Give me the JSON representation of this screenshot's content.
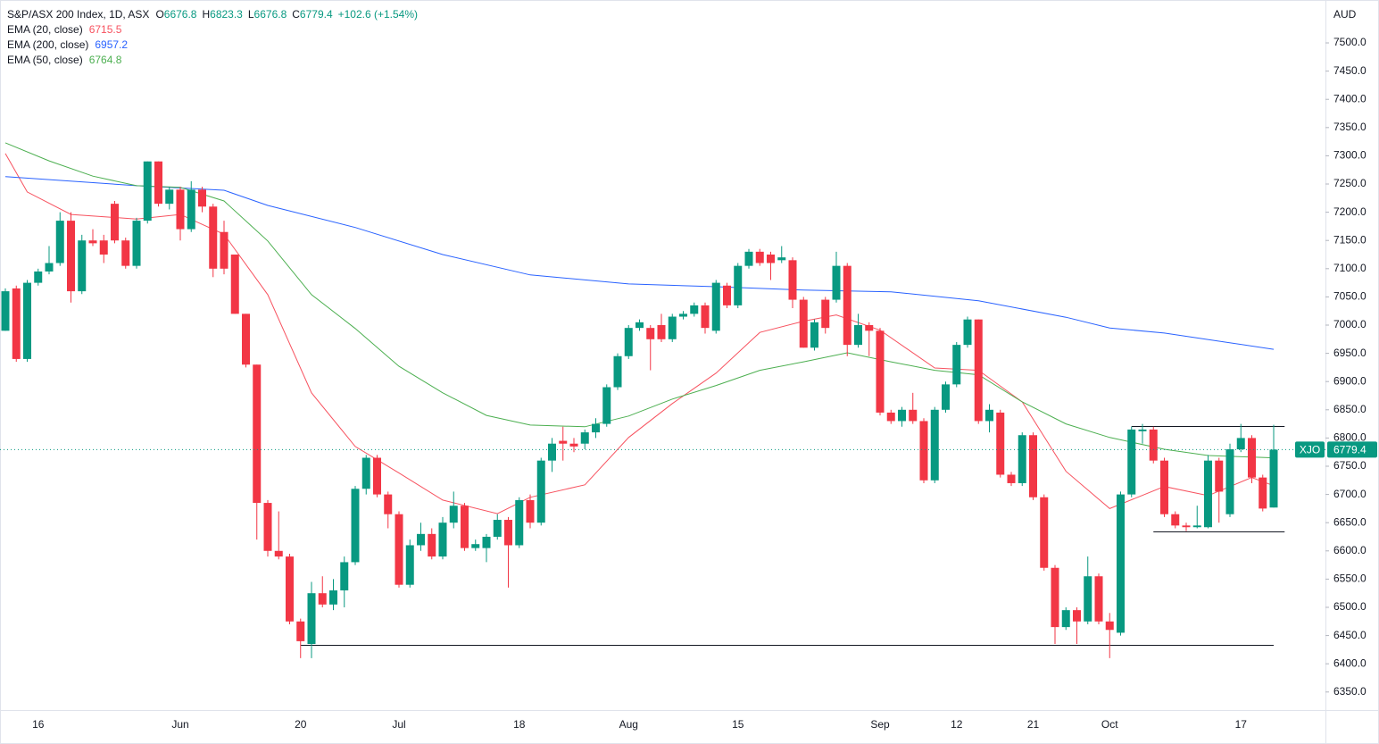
{
  "chart_data": {
    "type": "candlestick",
    "title": "S&P/ASX 200 Index, 1D, ASX",
    "ohlc_labels": [
      "O",
      "H",
      "L",
      "C"
    ],
    "change": "+102.6 (+1.54%)",
    "currency": "AUD",
    "symbol": "XJO",
    "up_color": "#089981",
    "down_color": "#f23645",
    "categories": [
      null,
      null,
      null,
      "16",
      null,
      null,
      null,
      null,
      null,
      null,
      null,
      null,
      null,
      null,
      null,
      null,
      "Jun",
      null,
      null,
      null,
      null,
      null,
      null,
      null,
      null,
      null,
      null,
      "20",
      null,
      null,
      null,
      null,
      null,
      null,
      null,
      null,
      "Jul",
      null,
      null,
      null,
      null,
      null,
      null,
      null,
      null,
      null,
      null,
      "18",
      null,
      null,
      null,
      null,
      null,
      null,
      null,
      null,
      null,
      "Aug",
      null,
      null,
      null,
      null,
      null,
      null,
      null,
      null,
      null,
      "15",
      null,
      null,
      null,
      null,
      null,
      null,
      null,
      null,
      null,
      null,
      null,
      null,
      "Sep",
      null,
      null,
      null,
      null,
      null,
      null,
      "12",
      null,
      null,
      null,
      null,
      null,
      null,
      "21",
      null,
      null,
      null,
      null,
      null,
      null,
      "Oct",
      null,
      null,
      null,
      null,
      null,
      null,
      null,
      null,
      null,
      null,
      null,
      "17",
      null,
      null,
      null
    ],
    "open": [
      6990,
      7065,
      6940,
      7075,
      7095,
      7110,
      7185,
      7060,
      7150,
      7150,
      7215,
      7150,
      7105,
      7185,
      7290,
      7215,
      7240,
      7170,
      7240,
      7210,
      7165,
      7125,
      7020,
      6930,
      6685,
      6600,
      6590,
      6475,
      6435,
      6525,
      6505,
      6530,
      6580,
      6710,
      6765,
      6700,
      6665,
      6540,
      6610,
      6630,
      6590,
      6650,
      6680,
      6605,
      6605,
      6625,
      6655,
      6610,
      6690,
      6650,
      6760,
      6795,
      6790,
      6790,
      6810,
      6825,
      6890,
      6945,
      6995,
      6995,
      7000,
      6975,
      7015,
      7020,
      7035,
      6990,
      7070,
      7035,
      7105,
      7130,
      7125,
      7115,
      7115,
      7045,
      6960,
      7045,
      7045,
      7105,
      6965,
      7000,
      6990,
      6845,
      6830,
      6850,
      6830,
      6725,
      6850,
      6895,
      6965,
      7010,
      6830,
      6845,
      6735,
      6720,
      6805,
      6695,
      6570,
      6465,
      6495,
      6475,
      6555,
      6475,
      6455,
      6700,
      6812,
      6815,
      6760,
      6665,
      6645,
      6642,
      6642,
      6760,
      6665,
      6780,
      6800,
      6730,
      6676.8
    ],
    "high": [
      7065,
      7070,
      7080,
      7100,
      7140,
      7200,
      7200,
      7160,
      7170,
      7160,
      7220,
      7155,
      7190,
      7290,
      7290,
      7245,
      7245,
      7255,
      7245,
      7215,
      7185,
      7125,
      7020,
      6930,
      6690,
      6670,
      6595,
      6480,
      6545,
      6555,
      6550,
      6590,
      6715,
      6770,
      6770,
      6705,
      6670,
      6620,
      6650,
      6640,
      6660,
      6705,
      6685,
      6620,
      6630,
      6665,
      6660,
      6695,
      6700,
      6765,
      6800,
      6820,
      6800,
      6815,
      6835,
      6895,
      6950,
      7000,
      7010,
      7000,
      7020,
      7020,
      7025,
      7040,
      7040,
      7080,
      7075,
      7110,
      7135,
      7135,
      7130,
      7140,
      7120,
      7050,
      7010,
      7050,
      7130,
      7110,
      7020,
      7005,
      6995,
      6850,
      6855,
      6880,
      6835,
      6855,
      6900,
      6970,
      7015,
      7010,
      6860,
      6850,
      6740,
      6810,
      6810,
      6700,
      6575,
      6500,
      6500,
      6590,
      6560,
      6490,
      6705,
      6820,
      6825,
      6820,
      6765,
      6670,
      6650,
      6680,
      6770,
      6765,
      6790,
      6825,
      6805,
      6735,
      6823.3
    ],
    "low": [
      6990,
      6935,
      6935,
      7070,
      7090,
      7105,
      7040,
      7055,
      7140,
      7110,
      7145,
      7100,
      7100,
      7180,
      7210,
      7205,
      7150,
      7165,
      7200,
      7085,
      7090,
      7020,
      6925,
      6620,
      6590,
      6585,
      6470,
      6410,
      6410,
      6500,
      6495,
      6500,
      6575,
      6700,
      6695,
      6640,
      6535,
      6535,
      6600,
      6585,
      6585,
      6640,
      6600,
      6600,
      6580,
      6620,
      6535,
      6605,
      6640,
      6645,
      6740,
      6760,
      6775,
      6780,
      6800,
      6820,
      6885,
      6940,
      6990,
      6920,
      6970,
      6970,
      7010,
      7015,
      6985,
      6985,
      7030,
      7030,
      7100,
      7105,
      7080,
      7110,
      7030,
      6960,
      6955,
      6985,
      7040,
      6945,
      6960,
      6945,
      6840,
      6825,
      6820,
      6825,
      6720,
      6720,
      6845,
      6890,
      6960,
      6825,
      6810,
      6730,
      6715,
      6715,
      6690,
      6565,
      6435,
      6460,
      6435,
      6470,
      6470,
      6410,
      6450,
      6695,
      6790,
      6755,
      6660,
      6640,
      6635,
      6640,
      6640,
      6650,
      6660,
      6775,
      6720,
      6670,
      6676.8
    ],
    "close": [
      7060,
      6940,
      7075,
      7095,
      7110,
      7185,
      7060,
      7150,
      7145,
      7125,
      7150,
      7105,
      7185,
      7290,
      7215,
      7240,
      7170,
      7240,
      7210,
      7100,
      7100,
      7020,
      6930,
      6685,
      6600,
      6590,
      6475,
      6440,
      6525,
      6505,
      6530,
      6580,
      6710,
      6765,
      6700,
      6665,
      6540,
      6610,
      6630,
      6590,
      6650,
      6680,
      6605,
      6612,
      6625,
      6655,
      6610,
      6690,
      6650,
      6760,
      6790,
      6790,
      6785,
      6810,
      6825,
      6890,
      6945,
      6995,
      7005,
      6975,
      6975,
      7015,
      7020,
      7035,
      6995,
      7075,
      7035,
      7105,
      7130,
      7110,
      7110,
      7120,
      7045,
      6960,
      7005,
      6995,
      7105,
      6965,
      7000,
      6990,
      6845,
      6830,
      6850,
      6830,
      6725,
      6850,
      6895,
      6965,
      7010,
      6830,
      6850,
      6735,
      6720,
      6805,
      6695,
      6570,
      6465,
      6495,
      6475,
      6555,
      6475,
      6460,
      6700,
      6815,
      6815,
      6760,
      6665,
      6645,
      6642,
      6645,
      6760,
      6705,
      6780,
      6800,
      6730,
      6675,
      6779.4
    ],
    "series": [
      {
        "name": "EMA (20, close)",
        "color": "#f7525f",
        "x": [
          0,
          2,
          6,
          12,
          16,
          20,
          24,
          28,
          32,
          36,
          40,
          45,
          48,
          53,
          57,
          61,
          65,
          69,
          73,
          76,
          80,
          85,
          89,
          93,
          97,
          101,
          106,
          110,
          114,
          116
        ],
        "values": [
          7304,
          7236,
          7196,
          7188,
          7196,
          7161,
          7054,
          6880,
          6785,
          6738,
          6690,
          6666,
          6695,
          6717,
          6801,
          6861,
          6915,
          6987,
          7007,
          7018,
          6991,
          6924,
          6920,
          6864,
          6741,
          6675,
          6714,
          6698,
          6730,
          6715.5
        ]
      },
      {
        "name": "EMA (200, close)",
        "color": "#2962ff",
        "x": [
          0,
          12,
          20,
          24,
          32,
          40,
          48,
          57,
          65,
          73,
          81,
          89,
          97,
          101,
          106,
          116
        ],
        "values": [
          7263,
          7247,
          7239,
          7212,
          7173,
          7125,
          7089,
          7073,
          7068,
          7062,
          7059,
          7043,
          7014,
          6995,
          6986,
          6957.2
        ]
      },
      {
        "name": "EMA (50, close)",
        "color": "#4caf50",
        "x": [
          0,
          4,
          8,
          12,
          16,
          20,
          24,
          28,
          32,
          36,
          40,
          44,
          48,
          53,
          57,
          61,
          65,
          69,
          73,
          77,
          81,
          85,
          89,
          93,
          97,
          101,
          106,
          110,
          116
        ],
        "values": [
          7323,
          7291,
          7264,
          7247,
          7244,
          7220,
          7149,
          7054,
          6994,
          6927,
          6880,
          6840,
          6823,
          6820,
          6839,
          6869,
          6893,
          6920,
          6935,
          6951,
          6935,
          6920,
          6912,
          6864,
          6825,
          6801,
          6780,
          6769,
          6764.8
        ]
      }
    ],
    "lines": [
      {
        "value": 6434,
        "start": 27,
        "end": 116
      },
      {
        "value": 6821,
        "start": 103,
        "end": 117
      },
      {
        "value": 6635,
        "start": 105,
        "end": 117
      }
    ],
    "ylim": [
      6318,
      7576
    ],
    "yticks": [
      {
        "value": 6350,
        "label": "6350.0"
      },
      {
        "value": 6400,
        "label": "6400.0"
      },
      {
        "value": 6450,
        "label": "6450.0"
      },
      {
        "value": 6500,
        "label": "6500.0"
      },
      {
        "value": 6550,
        "label": "6550.0"
      },
      {
        "value": 6600,
        "label": "6600.0"
      },
      {
        "value": 6650,
        "label": "6650.0"
      },
      {
        "value": 6700,
        "label": "6700.0"
      },
      {
        "value": 6750,
        "label": "6750.0"
      },
      {
        "value": 6800,
        "label": "6800.0"
      },
      {
        "value": 6850,
        "label": "6850.0"
      },
      {
        "value": 6900,
        "label": "6900.0"
      },
      {
        "value": 6950,
        "label": "6950.0"
      },
      {
        "value": 7000,
        "label": "7000.0"
      },
      {
        "value": 7050,
        "label": "7050.0"
      },
      {
        "value": 7100,
        "label": "7100.0"
      },
      {
        "value": 7150,
        "label": "7150.0"
      },
      {
        "value": 7200,
        "label": "7200.0"
      },
      {
        "value": 7250,
        "label": "7250.0"
      },
      {
        "value": 7300,
        "label": "7300.0"
      },
      {
        "value": 7350,
        "label": "7350.0"
      },
      {
        "value": 7400,
        "label": "7400.0"
      },
      {
        "value": 7450,
        "label": "7450.0"
      },
      {
        "value": 7500,
        "label": "7500.0"
      }
    ],
    "grid": false
  }
}
